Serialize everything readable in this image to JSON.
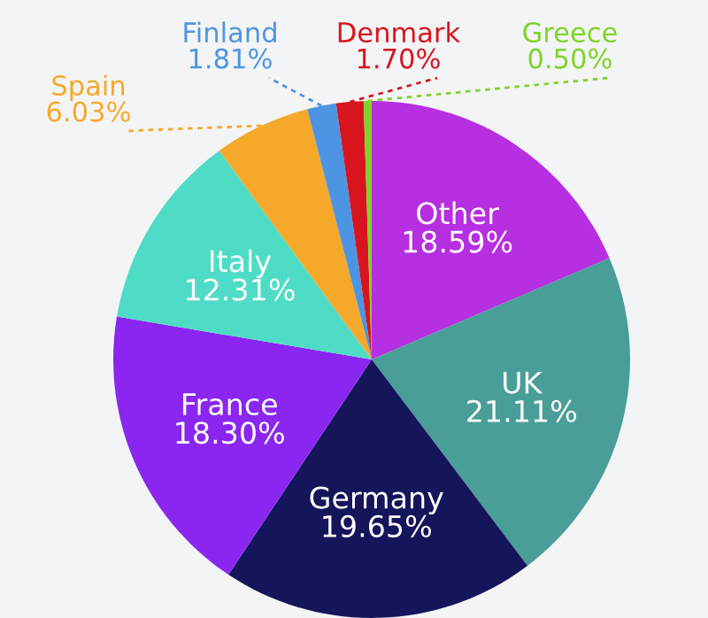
{
  "chart_data": {
    "type": "pie",
    "categories": [
      "Other",
      "UK",
      "Germany",
      "France",
      "Italy",
      "Spain",
      "Finland",
      "Denmark",
      "Greece"
    ],
    "values": [
      18.59,
      21.11,
      19.65,
      18.3,
      12.31,
      6.03,
      1.81,
      1.7,
      0.5
    ],
    "value_labels": [
      "18.59%",
      "21.11%",
      "19.65%",
      "18.30%",
      "12.31%",
      "6.03%",
      "1.81%",
      "1.70%",
      "0.50%"
    ],
    "colors": [
      "#b62fe0",
      "#4a9e98",
      "#15155c",
      "#8a26ef",
      "#4fdcc6",
      "#f6a82a",
      "#4d95e3",
      "#d8151f",
      "#7fd42a"
    ]
  }
}
